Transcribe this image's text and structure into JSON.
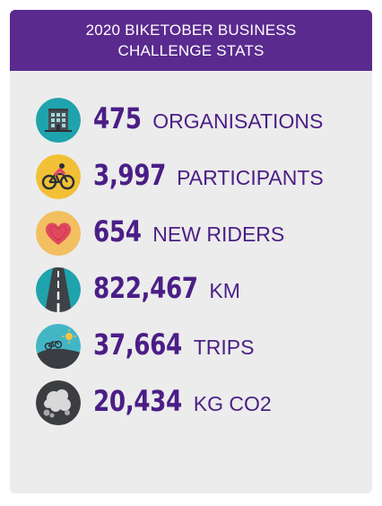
{
  "header": {
    "line1": "2020 BIKETOBER BUSINESS",
    "line2": "CHALLENGE STATS"
  },
  "stats": [
    {
      "value": "475",
      "label": "ORGANISATIONS",
      "icon": "office-building-icon",
      "icon_bg": "#1fa3ad"
    },
    {
      "value": "3,997",
      "label": "PARTICIPANTS",
      "icon": "cyclist-icon",
      "icon_bg": "#f2c036"
    },
    {
      "value": "654",
      "label": "NEW RIDERS",
      "icon": "heart-icon",
      "icon_bg": "#f2c060"
    },
    {
      "value": "822,467",
      "label": "KM",
      "icon": "road-icon",
      "icon_bg": "#1fa3ad"
    },
    {
      "value": "37,664",
      "label": "TRIPS",
      "icon": "bike-hill-sun-icon",
      "icon_bg": "#43b6c6"
    },
    {
      "value": "20,434",
      "label": "KG CO2",
      "icon": "smoke-cloud-icon",
      "icon_bg": "#3b3d40"
    }
  ],
  "colors": {
    "header_bg": "#5a2a8f",
    "card_bg": "#ececec",
    "text_accent": "#4b1e86"
  }
}
